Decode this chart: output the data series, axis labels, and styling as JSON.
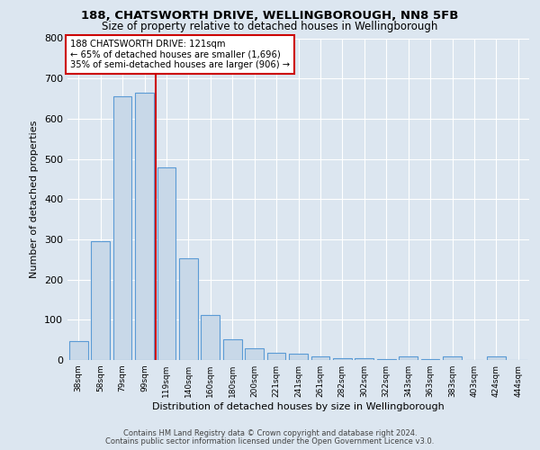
{
  "title1": "188, CHATSWORTH DRIVE, WELLINGBOROUGH, NN8 5FB",
  "title2": "Size of property relative to detached houses in Wellingborough",
  "xlabel": "Distribution of detached houses by size in Wellingborough",
  "ylabel": "Number of detached properties",
  "categories": [
    "38sqm",
    "58sqm",
    "79sqm",
    "99sqm",
    "119sqm",
    "140sqm",
    "160sqm",
    "180sqm",
    "200sqm",
    "221sqm",
    "241sqm",
    "261sqm",
    "282sqm",
    "302sqm",
    "322sqm",
    "343sqm",
    "363sqm",
    "383sqm",
    "403sqm",
    "424sqm",
    "444sqm"
  ],
  "values": [
    47,
    295,
    655,
    665,
    478,
    253,
    113,
    52,
    29,
    18,
    15,
    10,
    5,
    5,
    3,
    8,
    3,
    8,
    1,
    8,
    0
  ],
  "bar_color": "#c8d8e8",
  "bar_edge_color": "#5b9bd5",
  "red_line_index": 4,
  "red_line_label": "188 CHATSWORTH DRIVE: 121sqm",
  "annotation_line2": "← 65% of detached houses are smaller (1,696)",
  "annotation_line3": "35% of semi-detached houses are larger (906) →",
  "annotation_box_color": "#ffffff",
  "annotation_box_edge_color": "#cc0000",
  "ylim": [
    0,
    800
  ],
  "yticks": [
    0,
    100,
    200,
    300,
    400,
    500,
    600,
    700,
    800
  ],
  "background_color": "#dce6f0",
  "plot_background_color": "#dce6f0",
  "grid_color": "#ffffff",
  "footer1": "Contains HM Land Registry data © Crown copyright and database right 2024.",
  "footer2": "Contains public sector information licensed under the Open Government Licence v3.0."
}
